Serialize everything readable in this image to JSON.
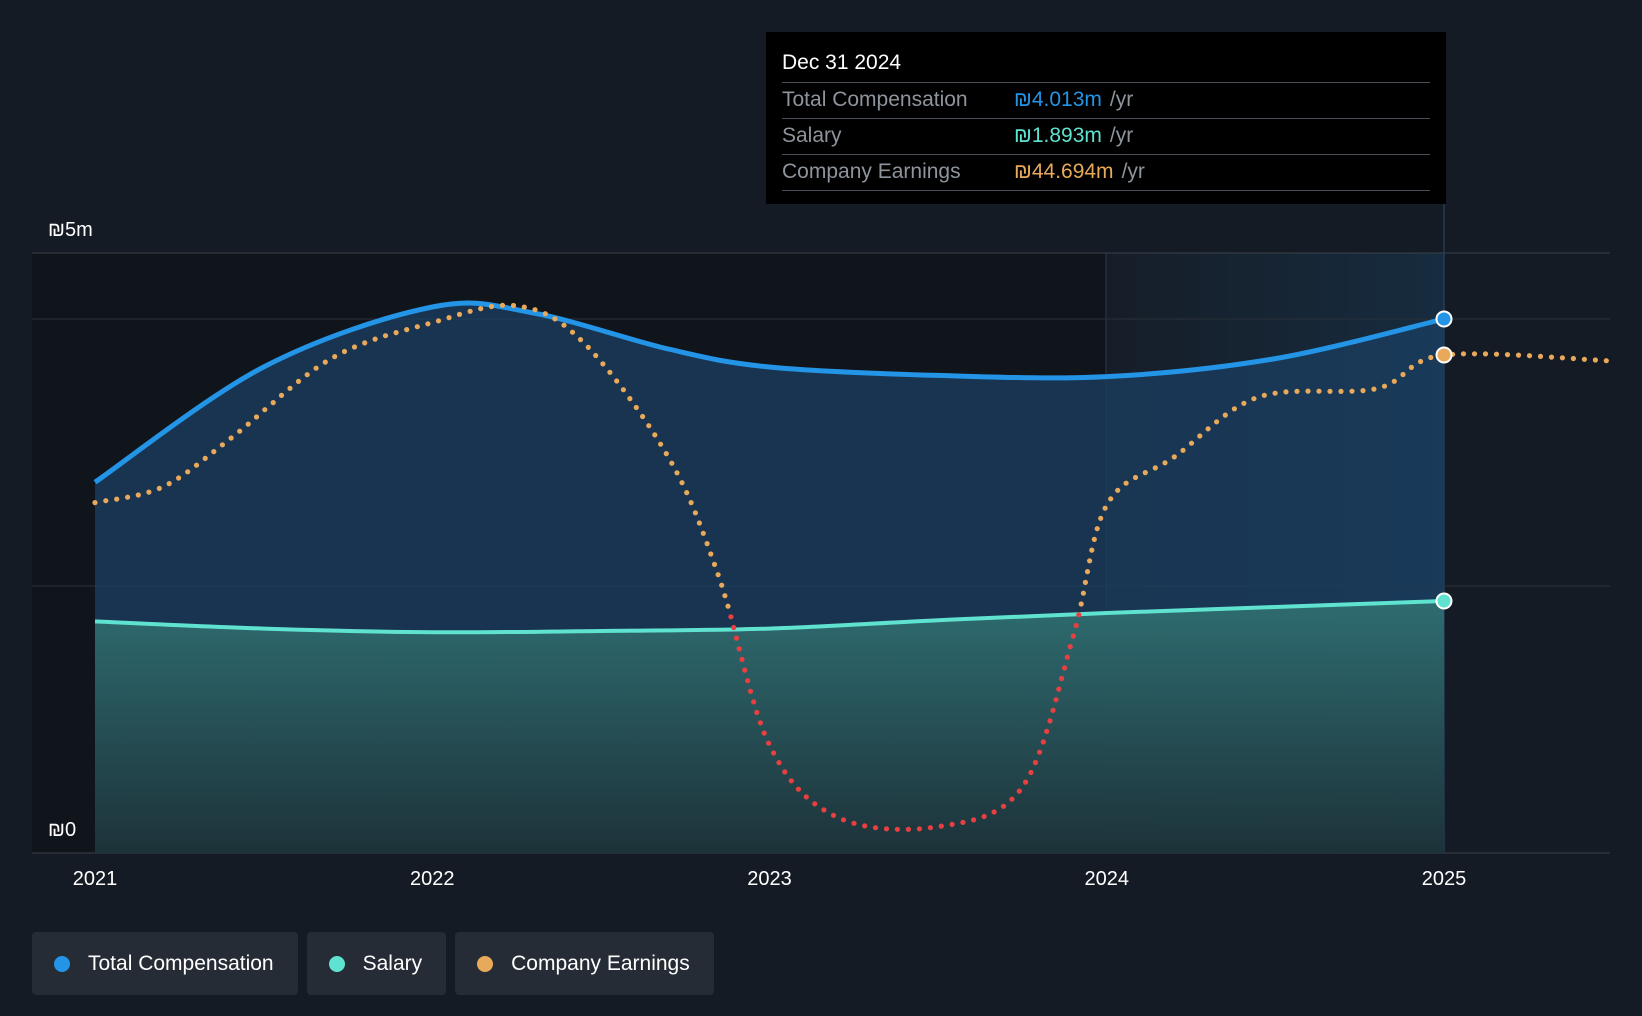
{
  "chart_data": {
    "type": "area",
    "currency": "₪",
    "y_labels": {
      "top": "₪5m",
      "bottom": "₪0"
    },
    "ylim": [
      0,
      5
    ],
    "xlim": [
      2021,
      2025.5
    ],
    "x_ticks": [
      "2021",
      "2022",
      "2023",
      "2024",
      "2025"
    ],
    "highlight_range": [
      2024,
      2025
    ],
    "series": [
      {
        "name": "Total Compensation",
        "unit": "₪m",
        "color": "#2394e6",
        "x": [
          2021,
          2021.5,
          2022,
          2022.3,
          2022.7,
          2023,
          2023.5,
          2024,
          2024.5,
          2025
        ],
        "y": [
          3.09,
          4.05,
          4.55,
          4.5,
          4.2,
          4.05,
          3.98,
          3.97,
          4.12,
          4.45
        ]
      },
      {
        "name": "Salary",
        "unit": "₪m",
        "color": "#5fe3d0",
        "x": [
          2021,
          2021.5,
          2022,
          2022.5,
          2023,
          2023.5,
          2024,
          2024.5,
          2025
        ],
        "y": [
          1.93,
          1.87,
          1.84,
          1.85,
          1.87,
          1.94,
          2.0,
          2.05,
          2.1
        ]
      },
      {
        "name": "Company Earnings",
        "unit": "₪m (scaled)",
        "color": "#e8a95b",
        "negative_color": "#e84040",
        "x": [
          2021,
          2021.2,
          2021.4,
          2021.7,
          2022,
          2022.25,
          2022.45,
          2022.7,
          2022.85,
          2023,
          2023.2,
          2023.5,
          2023.75,
          2023.9,
          2024,
          2024.2,
          2024.45,
          2024.8,
          2025,
          2025.5
        ],
        "y": [
          2.92,
          3.05,
          3.45,
          4.12,
          4.42,
          4.56,
          4.25,
          3.3,
          2.3,
          0.9,
          0.3,
          0.22,
          0.55,
          1.8,
          2.9,
          3.3,
          3.8,
          3.87,
          4.15,
          4.1
        ]
      }
    ]
  },
  "tooltip": {
    "date": "Dec 31 2024",
    "rows": [
      {
        "label": "Total Compensation",
        "value": "₪4.013m",
        "unit": "/yr",
        "color": "#2394e6"
      },
      {
        "label": "Salary",
        "value": "₪1.893m",
        "unit": "/yr",
        "color": "#5fe3d0"
      },
      {
        "label": "Company Earnings",
        "value": "₪44.694m",
        "unit": "/yr",
        "color": "#e8a95b"
      }
    ]
  },
  "legend": [
    {
      "label": "Total Compensation",
      "color": "#2394e6"
    },
    {
      "label": "Salary",
      "color": "#5fe3d0"
    },
    {
      "label": "Company Earnings",
      "color": "#e8a95b"
    }
  ]
}
